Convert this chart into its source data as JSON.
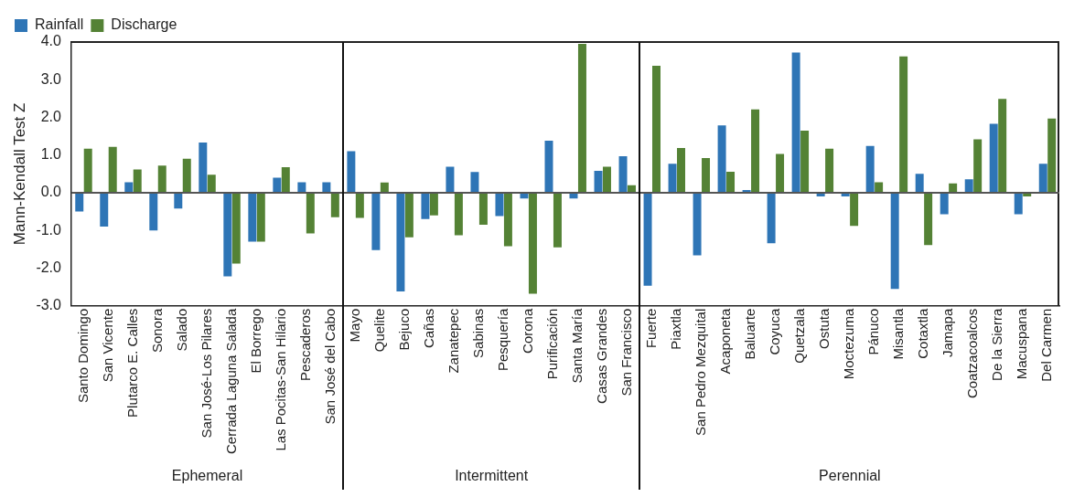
{
  "chart_data": {
    "type": "bar",
    "ylabel": "Mann-Kendall Test Z",
    "categories": [
      "Santo Domingo",
      "San Vicente",
      "Plutarco E. Calles",
      "Sonora",
      "Salado",
      "San José-Los Pilares",
      "Cerrada Laguna Salada",
      "El Borrego",
      "Las Pocitas-San Hilario",
      "Pescaderos",
      "San José del Cabo",
      "Mayo",
      "Quelite",
      "Bejuco",
      "Cañas",
      "Zanatepec",
      "Sabinas",
      "Pesquería",
      "Corona",
      "Purificación",
      "Santa María",
      "Casas Grandes",
      "San Francisco",
      "Fuerte",
      "Piaxtla",
      "San Pedro Mezquital",
      "Acaponeta",
      "Baluarte",
      "Coyuca",
      "Quetzala",
      "Ostuta",
      "Moctezuma",
      "Pánuco",
      "Misantla",
      "Cotaxtla",
      "Jamapa",
      "Coatzacoalcos",
      "De la Sierra",
      "Macuspana",
      "Del Carmen"
    ],
    "series": [
      {
        "name": "Rainfall",
        "color": "#2e75b6",
        "values": [
          -0.5,
          -0.9,
          0.28,
          -1.0,
          -0.42,
          1.33,
          -2.22,
          -1.3,
          0.4,
          0.28,
          0.28,
          1.1,
          -1.52,
          -2.62,
          -0.7,
          0.69,
          0.55,
          -0.62,
          -0.15,
          1.38,
          -0.15,
          0.58,
          0.97,
          -2.47,
          0.77,
          -1.66,
          1.79,
          0.07,
          -1.34,
          3.72,
          -0.1,
          -0.1,
          1.24,
          -2.55,
          0.5,
          -0.57,
          0.36,
          1.83,
          -0.57,
          0.77
        ]
      },
      {
        "name": "Discharge",
        "color": "#548235",
        "values": [
          1.17,
          1.22,
          0.62,
          0.72,
          0.9,
          0.48,
          -1.88,
          -1.3,
          0.68,
          -1.08,
          -0.65,
          -0.67,
          0.27,
          -1.18,
          -0.6,
          -1.13,
          -0.85,
          -1.42,
          -2.68,
          -1.45,
          3.95,
          0.69,
          0.2,
          3.37,
          1.19,
          0.92,
          0.56,
          2.21,
          1.03,
          1.65,
          1.17,
          -0.88,
          0.28,
          3.62,
          -1.39,
          0.25,
          1.42,
          2.49,
          -0.1,
          1.97
        ]
      }
    ],
    "ylim": [
      -3,
      4
    ],
    "yticks": [
      {
        "value": -3,
        "label": "-3.0"
      },
      {
        "value": -2,
        "label": "-2.0"
      },
      {
        "value": -1,
        "label": "-1.0"
      },
      {
        "value": 0,
        "label": "0.0"
      },
      {
        "value": 1,
        "label": "1.0"
      },
      {
        "value": 2,
        "label": "2.0"
      },
      {
        "value": 3,
        "label": "3.0"
      },
      {
        "value": 4,
        "label": "4.0"
      }
    ],
    "annotations": [
      "Ephemeral",
      "Intermittent",
      "Perennial"
    ],
    "legend": "top left",
    "grid": false
  }
}
